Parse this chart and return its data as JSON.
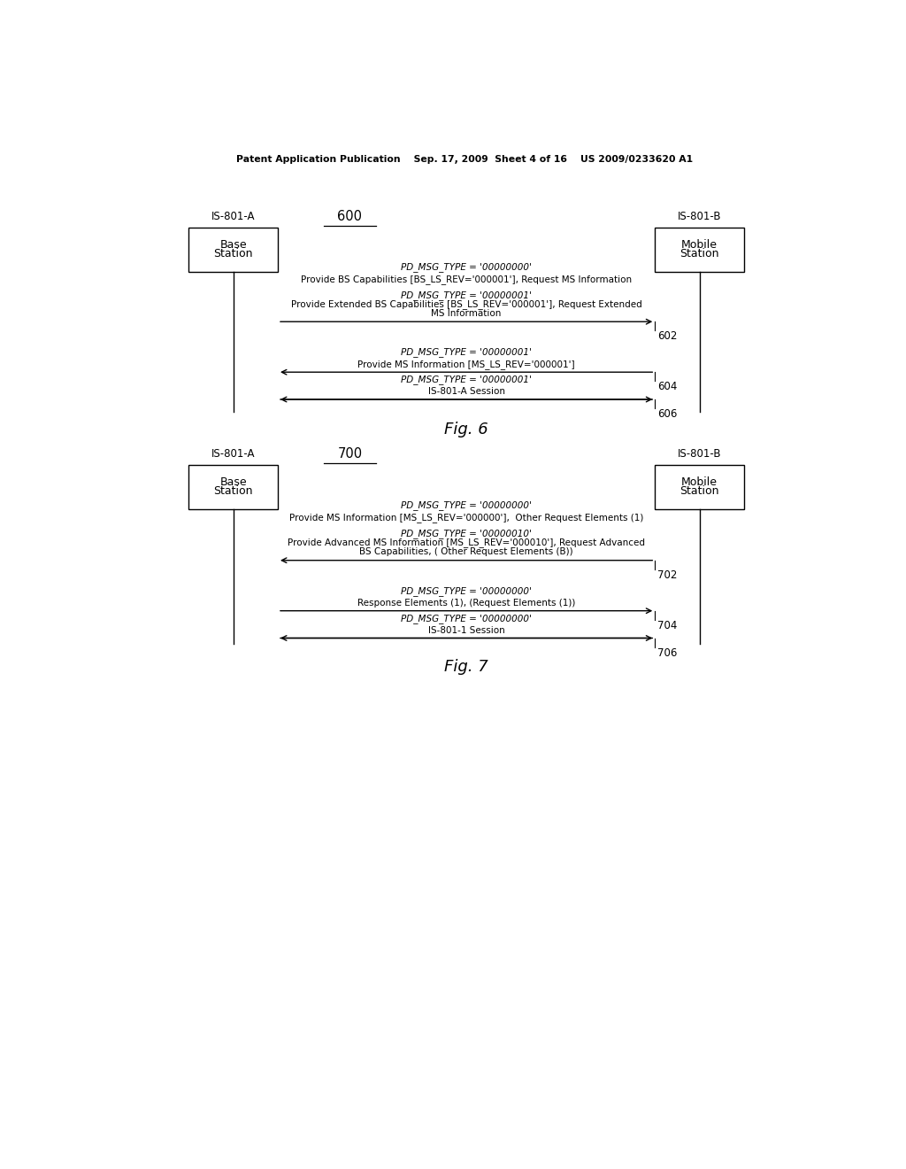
{
  "background_color": "#ffffff",
  "header_text": "Patent Application Publication    Sep. 17, 2009  Sheet 4 of 16    US 2009/0233620 A1",
  "fig6": {
    "title": "Fig. 6",
    "diagram_num": "600",
    "left_label_top": "IS-801-A",
    "left_box_lines": [
      "Base",
      "Station"
    ],
    "right_label_top": "IS-801-B",
    "right_box_lines": [
      "Mobile",
      "Station"
    ],
    "arrows": [
      {
        "direction": "right",
        "label_line1": "PD_MSG_TYPE = '00000000'",
        "label_line2": "Provide BS Capabilities [BS_LS_REV='000001'], Request MS Information",
        "label_line3": null,
        "num": null,
        "is_double_head": false
      },
      {
        "direction": "right",
        "label_line1": "PD_MSG_TYPE = '00000001'",
        "label_line2": "Provide Extended BS Capabilities [BS_LS_REV='000001'], Request Extended",
        "label_line3": "MS Information",
        "num": "602",
        "is_double_head": false
      },
      {
        "direction": "left",
        "label_line1": "PD_MSG_TYPE = '00000001'",
        "label_line2": "Provide MS Information [MS_LS_REV='000001']",
        "label_line3": null,
        "num": "604",
        "is_double_head": false
      },
      {
        "direction": "both",
        "label_line1": "PD_MSG_TYPE = '00000001'",
        "label_line2": "IS-801-A Session",
        "label_line3": null,
        "num": "606",
        "is_double_head": true
      }
    ]
  },
  "fig7": {
    "title": "Fig. 7",
    "diagram_num": "700",
    "left_label_top": "IS-801-A",
    "left_box_lines": [
      "Base",
      "Station"
    ],
    "right_label_top": "IS-801-B",
    "right_box_lines": [
      "Mobile",
      "Station"
    ],
    "arrows": [
      {
        "direction": "right",
        "label_line1": "PD_MSG_TYPE = '00000000'",
        "label_line2": "Provide MS Information [MS_LS_REV='000000'],  Other Request Elements (1)",
        "label_line3": null,
        "num": null,
        "is_double_head": false
      },
      {
        "direction": "left",
        "label_line1": "PD_MSG_TYPE = '00000010'",
        "label_line2": "Provide Advanced MS Information [MS_LS_REV='000010'], Request Advanced",
        "label_line3": "BS Capabilities, ( Other Request Elements (B))",
        "num": "702",
        "is_double_head": false
      },
      {
        "direction": "right",
        "label_line1": "PD_MSG_TYPE = '00000000'",
        "label_line2": "Response Elements (1), (Request Elements (1))",
        "label_line3": null,
        "num": "704",
        "is_double_head": false
      },
      {
        "direction": "both",
        "label_line1": "PD_MSG_TYPE = '00000000'",
        "label_line2": "IS-801-1 Session",
        "label_line3": null,
        "num": "706",
        "is_double_head": true
      }
    ]
  }
}
